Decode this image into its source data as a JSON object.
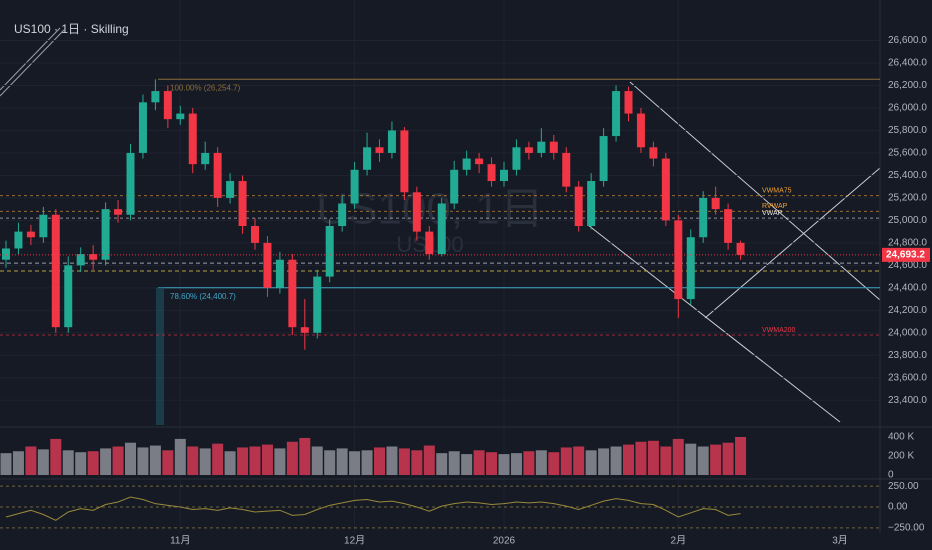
{
  "chart_data": [
    {
      "type": "candlestick",
      "title": "US100 · 1日 · Skilling",
      "watermark": "US100, 1日",
      "watermark_sub": "US100",
      "categories": [
        null,
        null,
        null,
        null,
        null,
        null,
        null,
        null,
        null,
        null,
        null,
        null,
        null,
        null,
        "11月",
        null,
        null,
        null,
        null,
        null,
        null,
        null,
        null,
        null,
        null,
        null,
        null,
        null,
        "12月",
        null,
        null,
        null,
        null,
        null,
        null,
        null,
        null,
        null,
        null,
        null,
        "2026",
        null,
        null,
        null,
        null,
        null,
        null,
        null,
        null,
        null,
        null,
        null,
        null,
        null,
        "2月",
        null,
        null,
        null,
        null,
        null
      ],
      "extra_x_label": "3月",
      "open": [
        24650,
        24750,
        24900,
        24850,
        25050,
        24050,
        24600,
        24700,
        24650,
        25100,
        25050,
        25600,
        26050,
        26150,
        25900,
        25950,
        25500,
        25600,
        25200,
        25350,
        24950,
        24800,
        24400,
        24650,
        24050,
        24000,
        24500,
        24950,
        25150,
        25450,
        25650,
        25600,
        25800,
        25250,
        24900,
        24700,
        25150,
        25450,
        25550,
        25500,
        25350,
        25450,
        25650,
        25600,
        25700,
        25600,
        25300,
        24950,
        25350,
        25750,
        26150,
        25950,
        25650,
        25550,
        25000,
        24300,
        24850,
        25200,
        25100,
        24800
      ],
      "high": [
        24820,
        24980,
        24960,
        25120,
        25100,
        24680,
        24760,
        24780,
        25160,
        25180,
        25680,
        26120,
        26254.7,
        26200,
        26020,
        26000,
        25700,
        25650,
        25420,
        25400,
        25020,
        24860,
        24720,
        24700,
        24300,
        24560,
        25010,
        25220,
        25520,
        25780,
        25720,
        25880,
        25830,
        25300,
        24950,
        25200,
        25530,
        25620,
        25600,
        25560,
        25520,
        25720,
        25700,
        25820,
        25760,
        25650,
        25350,
        25420,
        25820,
        26200,
        26190,
        26000,
        25700,
        25600,
        25050,
        24920,
        25260,
        25300,
        25150,
        24820
      ],
      "low": [
        24580,
        24700,
        24780,
        24800,
        24000,
        24000,
        24540,
        24560,
        24600,
        24980,
        25000,
        25550,
        25980,
        25820,
        25850,
        25420,
        25450,
        25120,
        25150,
        24880,
        24740,
        24320,
        24350,
        23980,
        23850,
        23950,
        24450,
        24900,
        25100,
        25400,
        25520,
        25550,
        25180,
        24820,
        24650,
        24680,
        25100,
        25400,
        25420,
        25300,
        25300,
        25400,
        25540,
        25560,
        25540,
        25250,
        24900,
        24920,
        25300,
        25700,
        25880,
        25600,
        25480,
        24950,
        24130,
        24250,
        24800,
        25050,
        24740,
        24650
      ],
      "close": [
        24750,
        24900,
        24850,
        25050,
        24050,
        24600,
        24700,
        24650,
        25100,
        25050,
        25600,
        26050,
        26150,
        25900,
        25950,
        25500,
        25600,
        25200,
        25350,
        24950,
        24800,
        24400,
        24650,
        24050,
        24000,
        24500,
        24950,
        25150,
        25450,
        25650,
        25600,
        25800,
        25250,
        24900,
        24700,
        25150,
        25450,
        25550,
        25500,
        25350,
        25450,
        25650,
        25600,
        25700,
        25600,
        25300,
        24950,
        25350,
        25750,
        26150,
        25950,
        25650,
        25550,
        25000,
        24300,
        24850,
        25200,
        25100,
        24800,
        24693.2
      ],
      "last_label": "24,693.2",
      "up_color": "#22ab94",
      "down_color": "#f23645",
      "ylim": [
        23180,
        26800
      ],
      "yticks": [
        {
          "value": 26600,
          "label": "26,600.0"
        },
        {
          "value": 26400,
          "label": "26,400.0"
        },
        {
          "value": 26200,
          "label": "26,200.0"
        },
        {
          "value": 26000,
          "label": "26,000.0"
        },
        {
          "value": 25800,
          "label": "25,800.0"
        },
        {
          "value": 25600,
          "label": "25,600.0"
        },
        {
          "value": 25400,
          "label": "25,400.0"
        },
        {
          "value": 25200,
          "label": "25,200.0"
        },
        {
          "value": 25000,
          "label": "25,000.0"
        },
        {
          "value": 24800,
          "label": "24,800.0"
        },
        {
          "value": 24600,
          "label": "24,600.0"
        },
        {
          "value": 24400,
          "label": "24,400.0"
        },
        {
          "value": 24200,
          "label": "24,200.0"
        },
        {
          "value": 24000,
          "label": "24,000.0"
        },
        {
          "value": 23800,
          "label": "23,800.0"
        },
        {
          "value": 23600,
          "label": "23,600.0"
        },
        {
          "value": 23400,
          "label": "23,400.0"
        }
      ],
      "grid": true,
      "fib_levels": [
        {
          "value": 26254.7,
          "label": "100.00% (26,254.7)",
          "color": "#8a6d3b"
        },
        {
          "value": 24400.7,
          "label": "78.60% (24,400.7)",
          "color": "#3fa7c9"
        }
      ],
      "levels": [
        {
          "value": 25220,
          "label": "VWMA75",
          "color": "#f0a030"
        },
        {
          "value": 25080,
          "label": "RVWAP",
          "color": "#f0a030"
        },
        {
          "value": 25020,
          "label": "VWAP",
          "color": "#e0e0e0"
        },
        {
          "value": 23980,
          "label": "VWMA200",
          "color": "#f23645"
        }
      ],
      "hlines": [
        {
          "value": 24620,
          "color": "#9aa0aa"
        },
        {
          "value": 24550,
          "color": "#b8a040"
        }
      ]
    },
    {
      "type": "volume-bar",
      "values": [
        230000,
        250000,
        300000,
        270000,
        380000,
        260000,
        240000,
        250000,
        280000,
        300000,
        340000,
        290000,
        310000,
        260000,
        380000,
        300000,
        280000,
        330000,
        250000,
        290000,
        300000,
        320000,
        280000,
        350000,
        390000,
        300000,
        260000,
        280000,
        250000,
        260000,
        290000,
        300000,
        280000,
        260000,
        310000,
        230000,
        250000,
        220000,
        260000,
        240000,
        220000,
        230000,
        250000,
        260000,
        240000,
        290000,
        300000,
        260000,
        280000,
        300000,
        320000,
        350000,
        360000,
        300000,
        380000,
        330000,
        300000,
        320000,
        340000,
        400000
      ],
      "up_color": "#7a7d85",
      "down_color": "#b8344c",
      "ylim": [
        0,
        480000
      ],
      "yticks": [
        {
          "value": 400000,
          "label": "400 K"
        },
        {
          "value": 200000,
          "label": "200 K"
        },
        0
      ]
    },
    {
      "type": "line",
      "values": [
        -120,
        -80,
        -40,
        -90,
        -160,
        -60,
        -20,
        -40,
        30,
        60,
        120,
        90,
        40,
        20,
        0,
        -30,
        -20,
        -40,
        -10,
        -30,
        -60,
        -50,
        -40,
        -100,
        -90,
        -30,
        20,
        50,
        80,
        90,
        60,
        70,
        40,
        0,
        -50,
        10,
        40,
        60,
        50,
        30,
        40,
        60,
        50,
        60,
        40,
        10,
        -30,
        20,
        70,
        100,
        80,
        40,
        30,
        -40,
        -120,
        -70,
        -20,
        -30,
        -100,
        -80
      ],
      "color": "#9a8a3a",
      "ylim": [
        -300,
        300
      ],
      "yticks": [
        {
          "value": 250,
          "label": "250.00"
        },
        {
          "value": 0,
          "label": "0.00"
        },
        {
          "value": -250,
          "label": "−250.00"
        }
      ]
    }
  ]
}
